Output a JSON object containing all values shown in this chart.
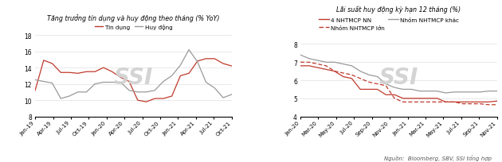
{
  "chart1_title": "Tăng trưởng tín dụng và huy động theo tháng (% YoY)",
  "chart1_xlabel_ticks": [
    "Jan-19",
    "Apr-19",
    "Jul-19",
    "Oct-19",
    "Jan-20",
    "Apr-20",
    "Jul-20",
    "Oct-20",
    "Jan-21",
    "Apr-21",
    "Jul-21",
    "Oct-21"
  ],
  "chart1_ylim": [
    8,
    18
  ],
  "chart1_yticks": [
    8,
    10,
    12,
    14,
    16,
    18
  ],
  "chart1_legend": [
    "Tin dụng",
    "Huy động"
  ],
  "tin_dung": [
    11.2,
    14.9,
    14.5,
    13.4,
    13.4,
    13.3,
    13.5,
    13.5,
    14.0,
    13.5,
    12.8,
    12.3,
    10.0,
    9.8,
    10.2,
    10.2,
    10.5,
    13.0,
    13.3,
    14.8,
    15.1,
    15.1,
    14.5,
    14.2
  ],
  "huy_dong": [
    12.5,
    12.3,
    12.1,
    10.2,
    10.5,
    11.0,
    11.0,
    12.0,
    12.2,
    12.2,
    12.2,
    11.2,
    11.0,
    11.0,
    11.2,
    12.3,
    13.0,
    14.3,
    16.2,
    14.7,
    12.2,
    11.5,
    10.3,
    10.7
  ],
  "chart2_title": "Lãi suất huy động kỳ hạn 12 tháng (%)",
  "chart2_xlabel_ticks": [
    "Jan-20",
    "Mar-20",
    "May-20",
    "Jul-20",
    "Sep-20",
    "Nov-20",
    "Jan-21",
    "Mar-21",
    "May-21",
    "Jul-21",
    "Sep-21",
    "Nov-21"
  ],
  "chart2_ylim": [
    4.0,
    8.5
  ],
  "chart2_yticks": [
    4.0,
    5.0,
    6.0,
    7.0,
    8.0
  ],
  "chart2_legend": [
    "4 NHTMCP NN",
    "Nhóm NHTMCP lớn",
    "Nhóm NHTMCP khác"
  ],
  "nhtmcp_nn": [
    6.8,
    6.8,
    6.7,
    6.6,
    6.5,
    6.2,
    6.1,
    5.5,
    5.5,
    5.5,
    5.2,
    5.2,
    5.0,
    5.0,
    5.0,
    5.0,
    5.0,
    4.8,
    4.8,
    4.8,
    4.8,
    4.8,
    4.8,
    4.85
  ],
  "nhtmcp_lon": [
    7.0,
    7.0,
    6.9,
    6.8,
    6.5,
    6.4,
    6.3,
    6.1,
    5.9,
    5.8,
    5.7,
    5.0,
    4.8,
    4.8,
    4.8,
    4.8,
    4.8,
    4.8,
    4.8,
    4.7,
    4.7,
    4.7,
    4.65,
    4.65
  ],
  "nhtmcp_khac": [
    7.4,
    7.2,
    7.1,
    7.0,
    7.0,
    6.9,
    6.8,
    6.5,
    6.3,
    6.2,
    5.8,
    5.6,
    5.5,
    5.5,
    5.4,
    5.4,
    5.4,
    5.3,
    5.35,
    5.35,
    5.35,
    5.35,
    5.4,
    5.4
  ],
  "watermark_color": "#d0d0d0",
  "source_text": "Nguồn:  Bloomberg, SBV, SSI tổng hợp",
  "red_color": "#c0392b",
  "gray_color": "#999999"
}
